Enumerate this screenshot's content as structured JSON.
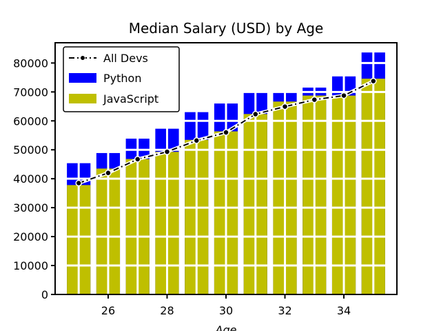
{
  "chart_data": {
    "type": "bar",
    "title": "Median Salary (USD) by Age",
    "xlabel": "Age",
    "ylabel": "",
    "x": [
      25,
      26,
      27,
      28,
      29,
      30,
      31,
      32,
      33,
      34,
      35
    ],
    "xticks": [
      26,
      28,
      30,
      32,
      34
    ],
    "yticks": [
      0,
      10000,
      20000,
      30000,
      40000,
      50000,
      60000,
      70000,
      80000
    ],
    "xlim": [
      24.2,
      35.8
    ],
    "ylim": [
      0,
      87000
    ],
    "grid": true,
    "legend_position": "top-left",
    "colors": {
      "python": "#0000ff",
      "javascript": "#bfbf00",
      "all_devs": "#000000",
      "grid": "#ffffff"
    },
    "series": [
      {
        "name": "Python",
        "kind": "bar",
        "values": [
          45372,
          48876,
          53850,
          57287,
          63016,
          65998,
          70003,
          70000,
          71496,
          75370,
          83640
        ]
      },
      {
        "name": "JavaScript",
        "kind": "bar",
        "values": [
          37810,
          43515,
          46823,
          49293,
          53437,
          56373,
          62375,
          66674,
          68745,
          68746,
          74583
        ]
      },
      {
        "name": "All Devs",
        "kind": "line",
        "style": "dashed-dot",
        "values": [
          38496,
          42000,
          46752,
          49320,
          53200,
          56000,
          62316,
          64928,
          67317,
          68748,
          73752
        ]
      }
    ],
    "legend": [
      "All Devs",
      "Python",
      "JavaScript"
    ]
  }
}
